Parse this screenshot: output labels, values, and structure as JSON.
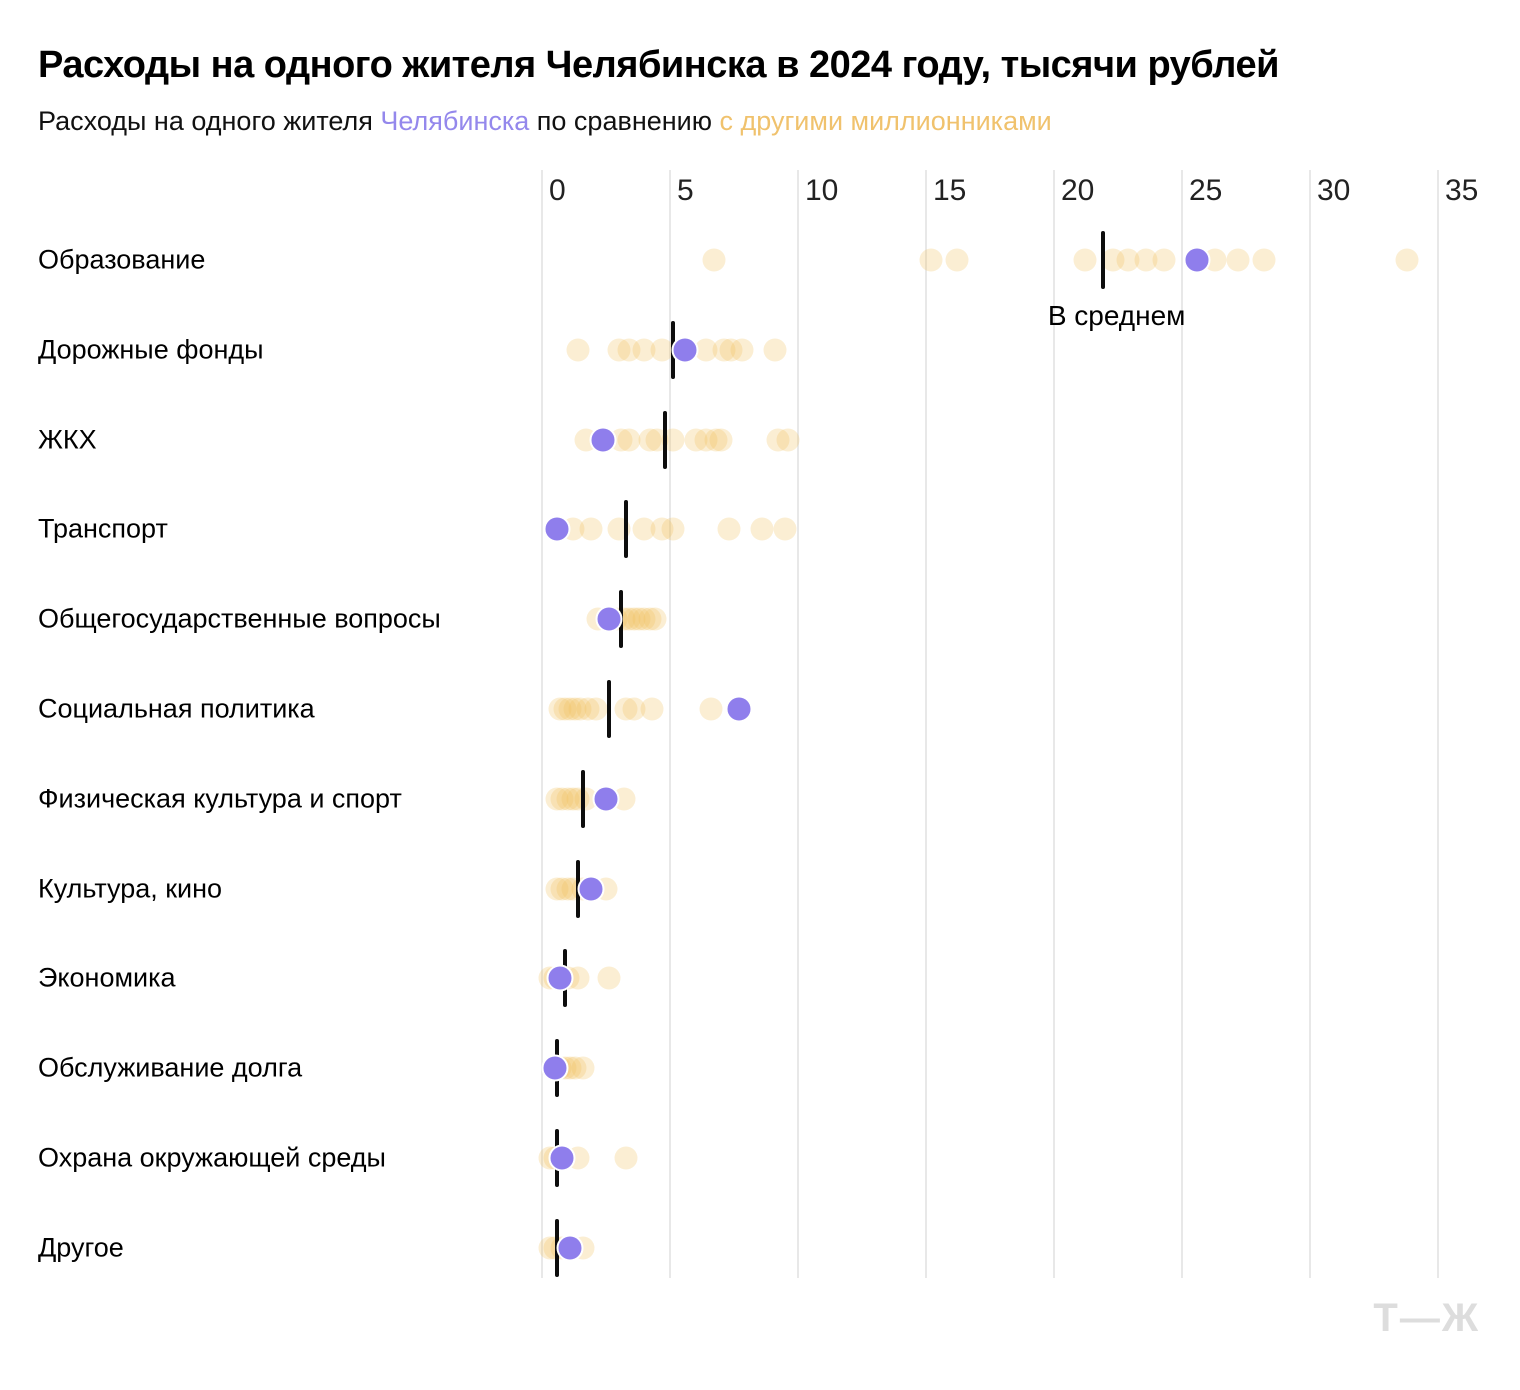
{
  "header": {
    "title": "Расходы на одного жителя Челябинска в 2024 году, тысячи рублей",
    "subtitle_prefix": "Расходы на одного жителя ",
    "subtitle_city": "Челябинска",
    "subtitle_middle": " по сравнению ",
    "subtitle_comparison": "с другими миллионниками"
  },
  "annotation": {
    "average_label": "В среднем"
  },
  "logo": "Т—Ж",
  "colors": {
    "city_dot": "#8f7eec",
    "other_dot_rgba": "rgba(242,191,94,0.27)",
    "average_tick": "#0d0d0d",
    "subtitle_city": "#9488ec",
    "subtitle_comparison": "#f0c26d",
    "gridline": "#e8e8e8",
    "logo": "#dddddd",
    "text": "#000000"
  },
  "chart_data": {
    "type": "scatter",
    "orientation": "horizontal_strip_plot",
    "title": "Расходы на одного жителя Челябинска в 2024 году, тысячи рублей",
    "xlabel": "тысячи рублей",
    "xlim": [
      0,
      35
    ],
    "x_ticks": [
      0,
      5,
      10,
      15,
      20,
      25,
      30,
      35
    ],
    "grid": "vertical",
    "series_legend": [
      {
        "name": "Челябинск",
        "style": "purple_dot"
      },
      {
        "name": "Другие миллионники",
        "style": "yellow_dot"
      },
      {
        "name": "В среднем",
        "style": "black_tick"
      }
    ],
    "rows": [
      {
        "label": "Образование",
        "city": 25.6,
        "average": 21.9,
        "others": [
          6.7,
          15.2,
          16.2,
          21.2,
          22.3,
          22.9,
          23.6,
          24.3,
          26.3,
          27.2,
          28.2,
          33.8
        ]
      },
      {
        "label": "Дорожные фонды",
        "city": 5.6,
        "average": 5.1,
        "others": [
          1.4,
          3.0,
          3.4,
          4.0,
          4.7,
          6.4,
          7.1,
          7.4,
          7.8,
          9.1
        ]
      },
      {
        "label": "ЖКХ",
        "city": 2.4,
        "average": 4.8,
        "others": [
          1.7,
          3.1,
          3.4,
          4.2,
          4.5,
          5.1,
          6.0,
          6.4,
          6.8,
          7.0,
          9.2,
          9.6
        ]
      },
      {
        "label": "Транспорт",
        "city": 0.6,
        "average": 3.3,
        "others": [
          1.2,
          1.9,
          3.0,
          4.0,
          4.7,
          5.1,
          7.3,
          8.6,
          9.5
        ]
      },
      {
        "label": "Общегосударственные вопросы",
        "city": 2.6,
        "average": 3.1,
        "others": [
          2.2,
          2.9,
          3.2,
          3.4,
          3.6,
          3.8,
          4.0,
          4.2,
          4.4
        ]
      },
      {
        "label": "Социальная политика",
        "city": 7.7,
        "average": 2.6,
        "others": [
          0.7,
          0.9,
          1.1,
          1.3,
          1.5,
          1.8,
          2.1,
          3.3,
          3.6,
          4.3,
          6.6
        ]
      },
      {
        "label": "Физическая культура и спорт",
        "city": 2.5,
        "average": 1.6,
        "others": [
          0.6,
          0.8,
          1.0,
          1.2,
          1.4,
          1.7,
          3.2
        ]
      },
      {
        "label": "Культура, кино",
        "city": 1.9,
        "average": 1.4,
        "others": [
          0.6,
          0.8,
          1.0,
          1.2,
          1.6,
          2.5
        ]
      },
      {
        "label": "Экономика",
        "city": 0.7,
        "average": 0.9,
        "others": [
          0.3,
          0.5,
          1.0,
          1.4,
          2.6
        ]
      },
      {
        "label": "Обслуживание долга",
        "city": 0.5,
        "average": 0.6,
        "others": [
          0.7,
          0.9,
          1.1,
          1.3,
          1.6
        ]
      },
      {
        "label": "Охрана окружающей среды",
        "city": 0.8,
        "average": 0.6,
        "others": [
          0.3,
          0.5,
          1.4,
          3.3
        ]
      },
      {
        "label": "Другое",
        "city": 1.1,
        "average": 0.6,
        "others": [
          0.3,
          0.5,
          0.8,
          1.6
        ]
      }
    ]
  }
}
